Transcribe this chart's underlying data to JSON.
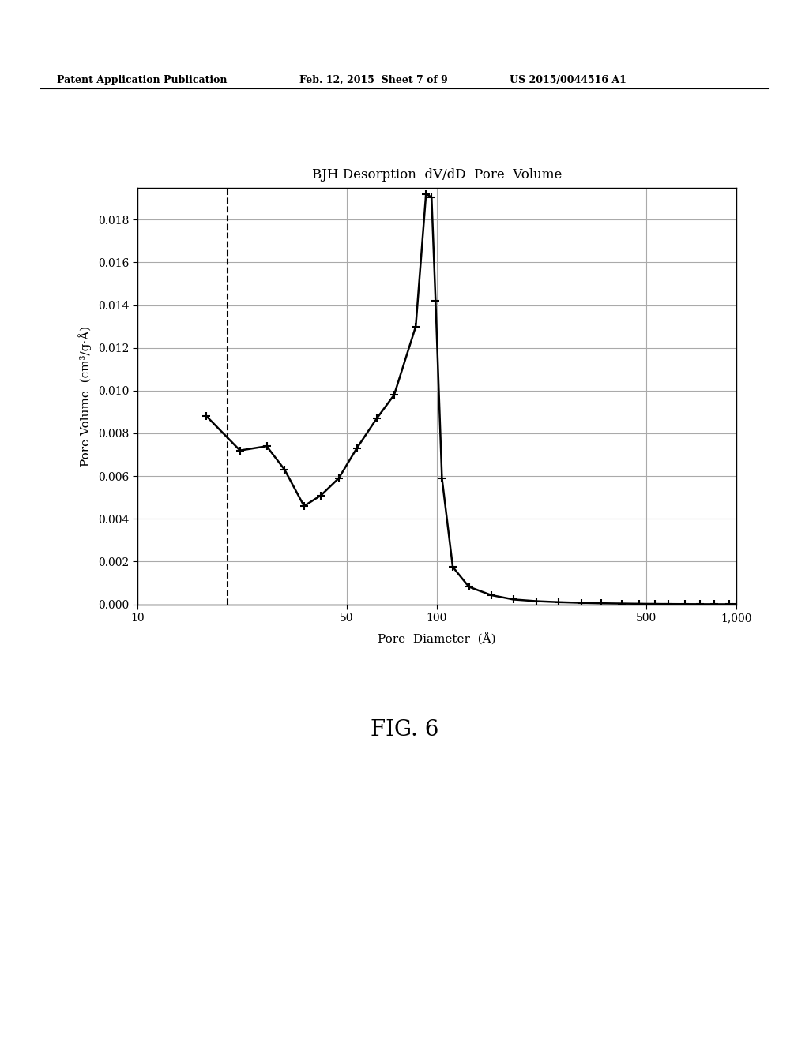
{
  "title": "BJH Desorption  dV/dD  Pore  Volume",
  "xlabel": "Pore  Diameter  (Å)",
  "ylabel": "Pore Volume  (cm³/g·Å)",
  "background_color": "#ffffff",
  "dashed_vline_x": 20,
  "x_data": [
    17,
    22,
    27,
    31,
    36,
    41,
    47,
    54,
    63,
    72,
    85,
    92,
    96,
    99,
    104,
    113,
    128,
    152,
    180,
    215,
    255,
    305,
    355,
    415,
    475,
    535,
    595,
    675,
    755,
    845,
    945,
    1000
  ],
  "y_data": [
    0.0088,
    0.0072,
    0.0074,
    0.0063,
    0.0046,
    0.0051,
    0.0059,
    0.0073,
    0.0087,
    0.0098,
    0.013,
    0.0192,
    0.01905,
    0.0142,
    0.0059,
    0.00175,
    0.00082,
    0.00043,
    0.00023,
    0.00015,
    0.000105,
    7.2e-05,
    5.2e-05,
    3.8e-05,
    2.8e-05,
    2.1e-05,
    1.6e-05,
    1.2e-05,
    9e-06,
    7e-06,
    6e-06,
    5e-06
  ],
  "xlim": [
    10,
    1000
  ],
  "ylim": [
    0.0,
    0.0195
  ],
  "yticks": [
    0.0,
    0.002,
    0.004,
    0.006,
    0.008,
    0.01,
    0.012,
    0.014,
    0.016,
    0.018
  ],
  "xticks": [
    10,
    50,
    100,
    500,
    1000
  ],
  "xticklabels": [
    "10",
    "50",
    "100",
    "500",
    "1,000"
  ],
  "header_left": "Patent Application Publication",
  "header_center": "Feb. 12, 2015  Sheet 7 of 9",
  "header_right": "US 2015/0044516 A1",
  "fig_label": "FIG. 6",
  "line_color": "#000000",
  "marker": "+",
  "marker_size": 7,
  "line_width": 1.8,
  "grid_color": "#aaaaaa",
  "header_fontsize": 9,
  "title_fontsize": 12,
  "axis_label_fontsize": 11,
  "tick_fontsize": 10,
  "fig_label_fontsize": 20
}
